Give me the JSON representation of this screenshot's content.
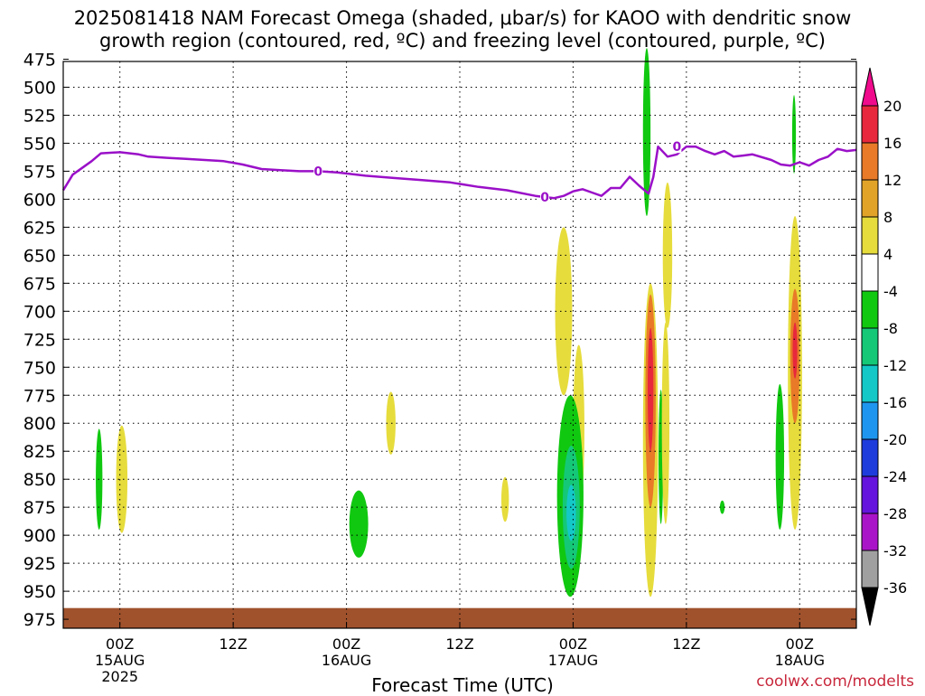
{
  "title_line1": "2025081418 NAM Forecast Omega (shaded, μbar/s) for KAOO with dendritic snow",
  "title_line2": "growth region (contoured, red, ºC) and freezing level (contoured, purple, ºC)",
  "credit": "coolwx.com/modelts",
  "colors": {
    "freezing_line": "#9a10c8",
    "ground": "#a0522d",
    "grid": "#000000"
  },
  "chart_data": {
    "type": "heatmap",
    "title": "2025081418 NAM Forecast Omega (shaded, μbar/s) for KAOO with dendritic snow growth region (contoured, red, ºC) and freezing level (contoured, purple, ºC)",
    "xlabel": "Forecast Time (UTC)",
    "ylabel": "",
    "x_range_hours": [
      -6,
      78
    ],
    "y_range_mb": [
      475,
      975
    ],
    "y_ticks": [
      475,
      500,
      525,
      550,
      575,
      600,
      625,
      650,
      675,
      700,
      725,
      750,
      775,
      800,
      825,
      850,
      875,
      900,
      925,
      950,
      975
    ],
    "x_ticks": [
      {
        "hour": 0,
        "label": "00Z",
        "sub": "15AUG",
        "sub2": "2025"
      },
      {
        "hour": 12,
        "label": "12Z",
        "sub": "",
        "sub2": ""
      },
      {
        "hour": 24,
        "label": "00Z",
        "sub": "16AUG",
        "sub2": ""
      },
      {
        "hour": 36,
        "label": "12Z",
        "sub": "",
        "sub2": ""
      },
      {
        "hour": 48,
        "label": "00Z",
        "sub": "17AUG",
        "sub2": ""
      },
      {
        "hour": 60,
        "label": "12Z",
        "sub": "",
        "sub2": ""
      },
      {
        "hour": 72,
        "label": "00Z",
        "sub": "18AUG",
        "sub2": ""
      }
    ],
    "colorbar": {
      "labels": [
        "20",
        "16",
        "12",
        "8",
        "4",
        "-4",
        "-8",
        "-12",
        "-16",
        "-20",
        "-24",
        "-28",
        "-32",
        "-36"
      ],
      "colors": [
        "#f00a8c",
        "#e8283c",
        "#e87a28",
        "#e2a428",
        "#e6dc3c",
        "#ffffff",
        "#10c810",
        "#14c878",
        "#14c8c8",
        "#1e96f0",
        "#1e3cdc",
        "#6414dc",
        "#aa14c8",
        "#a0a0a0",
        "#000000"
      ]
    },
    "freezing_level": {
      "label": "0",
      "points": [
        [
          -6,
          592
        ],
        [
          -5,
          578
        ],
        [
          -3,
          566
        ],
        [
          -2,
          559
        ],
        [
          0,
          558
        ],
        [
          2,
          560
        ],
        [
          3,
          562
        ],
        [
          5,
          563
        ],
        [
          7,
          564
        ],
        [
          9,
          565
        ],
        [
          11,
          566
        ],
        [
          13,
          569
        ],
        [
          15,
          573
        ],
        [
          17,
          574
        ],
        [
          19,
          575
        ],
        [
          21,
          575
        ],
        [
          23,
          576
        ],
        [
          26,
          579
        ],
        [
          29,
          581
        ],
        [
          32,
          583
        ],
        [
          35,
          585
        ],
        [
          38,
          589
        ],
        [
          41,
          592
        ],
        [
          44,
          597
        ],
        [
          46,
          599
        ],
        [
          47,
          597
        ],
        [
          48,
          593
        ],
        [
          49,
          591
        ],
        [
          50,
          594
        ],
        [
          51,
          597
        ],
        [
          52,
          590
        ],
        [
          53,
          590
        ],
        [
          54,
          580
        ],
        [
          55,
          588
        ],
        [
          56,
          595
        ],
        [
          56.5,
          580
        ],
        [
          57,
          553
        ],
        [
          58,
          562
        ],
        [
          59,
          560
        ],
        [
          60,
          553
        ],
        [
          61,
          553
        ],
        [
          62,
          557
        ],
        [
          63,
          560
        ],
        [
          64,
          557
        ],
        [
          65,
          562
        ],
        [
          66,
          561
        ],
        [
          67,
          560
        ],
        [
          69,
          565
        ],
        [
          70,
          569
        ],
        [
          71,
          570
        ],
        [
          72,
          567
        ],
        [
          73,
          570
        ],
        [
          74,
          565
        ],
        [
          75,
          562
        ],
        [
          76,
          555
        ],
        [
          77,
          557
        ],
        [
          78,
          556
        ]
      ],
      "label_points": [
        [
          21,
          575
        ],
        [
          45,
          598
        ],
        [
          59,
          553
        ]
      ]
    },
    "omega_regions": [
      {
        "x": -2.2,
        "p": 850,
        "rx": 0.35,
        "rp": 45,
        "color": "#10c810"
      },
      {
        "x": 0.2,
        "p": 850,
        "rx": 0.6,
        "rp": 48,
        "color": "#e6dc3c"
      },
      {
        "x": 28.7,
        "p": 800,
        "rx": 0.5,
        "rp": 28,
        "color": "#e6dc3c"
      },
      {
        "x": 25.3,
        "p": 890,
        "rx": 1.0,
        "rp": 30,
        "color": "#10c810"
      },
      {
        "x": 40.8,
        "p": 868,
        "rx": 0.4,
        "rp": 20,
        "color": "#e6dc3c"
      },
      {
        "x": 47.0,
        "p": 700,
        "rx": 0.9,
        "rp": 75,
        "color": "#e6dc3c"
      },
      {
        "x": 48.6,
        "p": 805,
        "rx": 0.6,
        "rp": 75,
        "color": "#e6dc3c"
      },
      {
        "x": 47.7,
        "p": 865,
        "rx": 1.4,
        "rp": 90,
        "color": "#10c810"
      },
      {
        "x": 47.8,
        "p": 875,
        "rx": 0.9,
        "rp": 55,
        "color": "#14c878"
      },
      {
        "x": 47.8,
        "p": 880,
        "rx": 0.5,
        "rp": 25,
        "color": "#14c8c8"
      },
      {
        "x": 55.8,
        "p": 540,
        "rx": 0.4,
        "rp": 75,
        "color": "#10c810"
      },
      {
        "x": 56.2,
        "p": 815,
        "rx": 0.8,
        "rp": 140,
        "color": "#e6dc3c"
      },
      {
        "x": 56.2,
        "p": 780,
        "rx": 0.55,
        "rp": 95,
        "color": "#e87a28"
      },
      {
        "x": 56.2,
        "p": 770,
        "rx": 0.3,
        "rp": 55,
        "color": "#e8283c"
      },
      {
        "x": 57.3,
        "p": 830,
        "rx": 0.25,
        "rp": 60,
        "color": "#10c810"
      },
      {
        "x": 58.0,
        "p": 650,
        "rx": 0.5,
        "rp": 65,
        "color": "#e6dc3c"
      },
      {
        "x": 57.8,
        "p": 800,
        "rx": 0.4,
        "rp": 90,
        "color": "#e6dc3c"
      },
      {
        "x": 63.8,
        "p": 875,
        "rx": 0.25,
        "rp": 6,
        "color": "#10c810"
      },
      {
        "x": 71.4,
        "p": 542,
        "rx": 0.2,
        "rp": 35,
        "color": "#10c810"
      },
      {
        "x": 71.5,
        "p": 755,
        "rx": 0.75,
        "rp": 140,
        "color": "#e6dc3c"
      },
      {
        "x": 71.5,
        "p": 740,
        "rx": 0.5,
        "rp": 60,
        "color": "#e87a28"
      },
      {
        "x": 71.5,
        "p": 735,
        "rx": 0.25,
        "rp": 25,
        "color": "#e8283c"
      },
      {
        "x": 69.9,
        "p": 830,
        "rx": 0.45,
        "rp": 65,
        "color": "#10c810"
      }
    ],
    "ground_level_mb": 965
  }
}
